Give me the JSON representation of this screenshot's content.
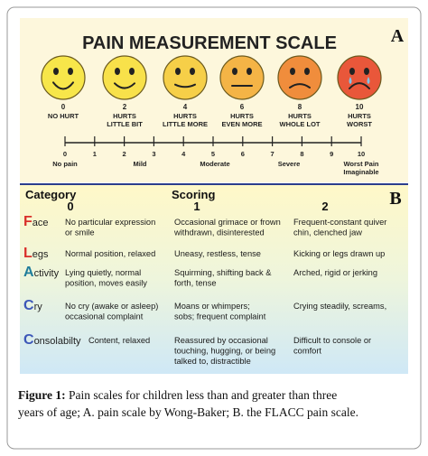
{
  "panel_a": {
    "label": "A",
    "title": "PAIN MEASUREMENT SCALE",
    "faces": [
      {
        "score": "0",
        "label": [
          "NO HURT"
        ]
      },
      {
        "score": "2",
        "label": [
          "HURTS",
          "LITTLE BIT"
        ]
      },
      {
        "score": "4",
        "label": [
          "HURTS",
          "LITTLE MORE"
        ]
      },
      {
        "score": "6",
        "label": [
          "HURTS",
          "EVEN MORE"
        ]
      },
      {
        "score": "8",
        "label": [
          "HURTS",
          "WHOLE LOT"
        ]
      },
      {
        "score": "10",
        "label": [
          "HURTS",
          "WORST"
        ]
      }
    ],
    "scale": {
      "ticks": [
        "0",
        "1",
        "2",
        "3",
        "4",
        "5",
        "6",
        "7",
        "8",
        "9",
        "10"
      ],
      "labels": [
        [
          "No pain"
        ],
        [
          "Mild"
        ],
        [
          "Moderate"
        ],
        [
          "Severe"
        ],
        [
          "Worst Pain",
          "Imaginable"
        ]
      ]
    }
  },
  "panel_b": {
    "label": "B",
    "header": {
      "category": "Category",
      "scoring": "Scoring",
      "scores": [
        "0",
        "1",
        "2"
      ]
    },
    "rows": [
      {
        "category": {
          "initial": "F",
          "rest": "ace"
        },
        "cells": [
          [
            "No particular expression",
            "or smile"
          ],
          [
            "Occasional grimace or frown",
            "withdrawn, disinterested"
          ],
          [
            "Frequent-constant quiver",
            "chin, clenched jaw"
          ]
        ]
      },
      {
        "category": {
          "initial": "L",
          "rest": "egs"
        },
        "cells": [
          [
            "Normal position, relaxed"
          ],
          [
            "Uneasy, restless, tense"
          ],
          [
            "Kicking or legs drawn up"
          ]
        ]
      },
      {
        "category": {
          "initial": "A",
          "rest": "ctivity"
        },
        "cells": [
          [
            "Lying quietly, normal",
            "position, moves easily"
          ],
          [
            "Squirming, shifting back &",
            "forth, tense"
          ],
          [
            "Arched, rigid or jerking"
          ]
        ]
      },
      {
        "category": {
          "initial": "C",
          "rest": "ry"
        },
        "cells": [
          [
            "No cry (awake or asleep)",
            "occasional complaint"
          ],
          [
            "Moans or whimpers;",
            "sobs; frequent complaint"
          ],
          [
            "Crying steadily, screams,"
          ]
        ]
      },
      {
        "category": {
          "initial": "C",
          "rest": "onsolabilty"
        },
        "cells": [
          [
            "Content, relaxed"
          ],
          [
            "Reassured by occasional",
            "touching, hugging, or being",
            "talked to, distractible"
          ],
          [
            "Difficult to console or",
            "comfort"
          ]
        ]
      }
    ]
  },
  "caption": {
    "label": "Figure 1:",
    "lines": [
      "Pain scales for children less than and greater than three",
      "years of age; A. pain scale by Wong-Baker; B. the FLACC pain scale."
    ]
  }
}
